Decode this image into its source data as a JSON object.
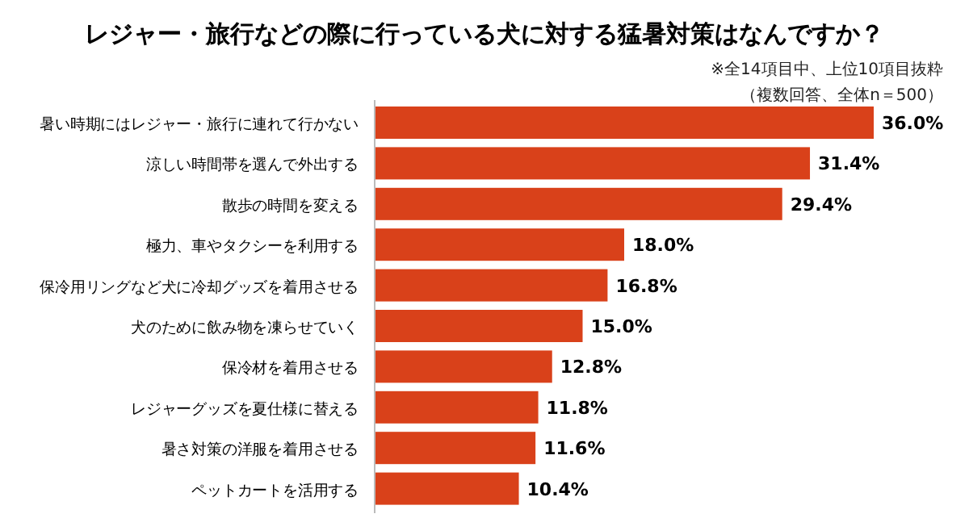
{
  "chart_data": {
    "type": "bar",
    "orientation": "horizontal",
    "title": "レジャー・旅行などの際に行っている犬に対する猛暑対策はなんですか？",
    "annotations": [
      "※全14項目中、上位10項目抜粋",
      "（複数回答、全体n＝500）"
    ],
    "categories": [
      "暑い時期にはレジャー・旅行に連れて行かない",
      "涼しい時間帯を選んで外出する",
      "散歩の時間を変える",
      "極力、車やタクシーを利用する",
      "保冷用リングなど犬に冷却グッズを着用させる",
      "犬のために飲み物を凍らせていく",
      "保冷材を着用させる",
      "レジャーグッズを夏仕様に替える",
      "暑さ対策の洋服を着用させる",
      "ペットカートを活用する"
    ],
    "values": [
      36.0,
      31.4,
      29.4,
      18.0,
      16.8,
      15.0,
      12.8,
      11.8,
      11.6,
      10.4
    ],
    "value_labels": [
      "36.0%",
      "31.4%",
      "29.4%",
      "18.0%",
      "16.8%",
      "15.0%",
      "12.8%",
      "11.8%",
      "11.6%",
      "10.4%"
    ],
    "color": "#d9411a"
  }
}
